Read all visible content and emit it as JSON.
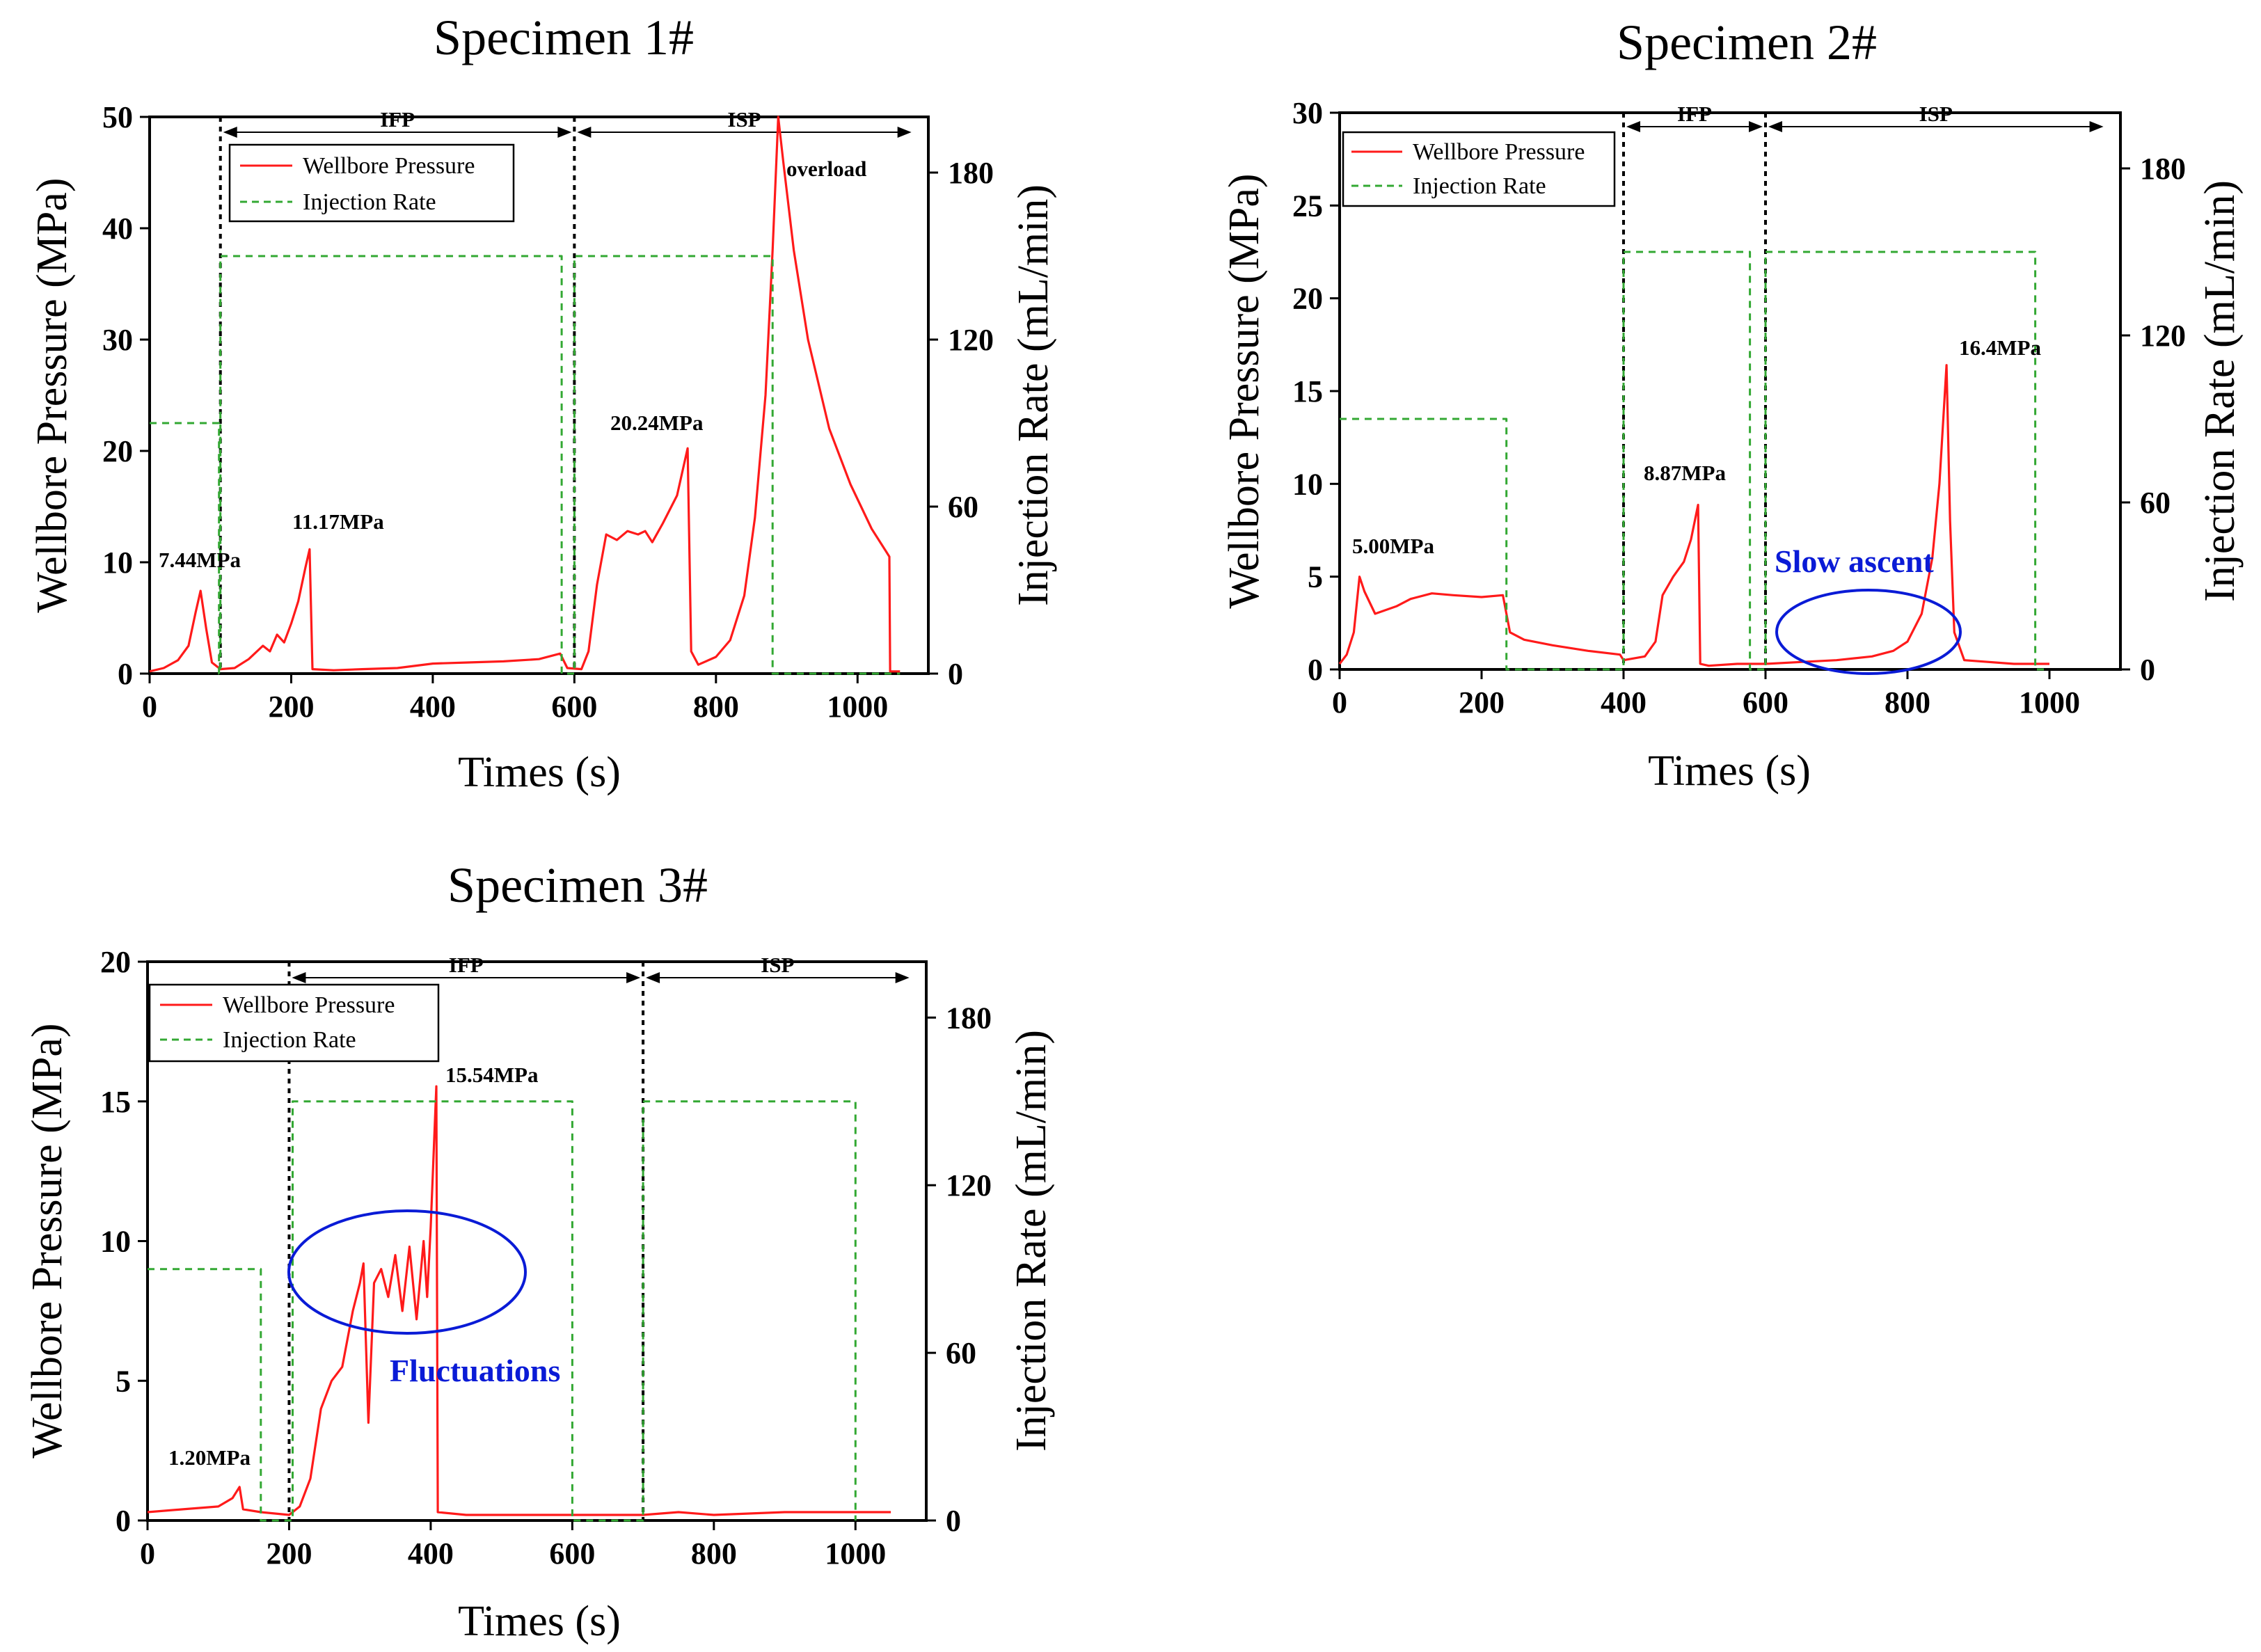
{
  "figure_type": "Hydraulic fracturing test records",
  "chart_data": [
    {
      "type": "line",
      "id": "specimen1",
      "title": "Specimen 1#",
      "xlabel": "Times (s)",
      "ylabel": "Wellbore Pressure (MPa)",
      "y2label": "Injection Rate (mL/min)",
      "xlim": [
        0,
        1100
      ],
      "ylim": [
        0,
        50
      ],
      "y2lim": [
        0,
        200
      ],
      "xticks": [
        0,
        200,
        400,
        600,
        800,
        1000
      ],
      "yticks": [
        0,
        10,
        20,
        30,
        40,
        50
      ],
      "y2ticks": [
        0,
        60,
        120,
        180
      ],
      "legend": [
        "Wellbore Pressure",
        "Injection Rate"
      ],
      "phases": [
        {
          "label": "IFP",
          "start": 100,
          "end": 600
        },
        {
          "label": "ISP",
          "start": 600,
          "end": 1080
        }
      ],
      "series": [
        {
          "name": "Wellbore Pressure",
          "axis": "left",
          "color": "#ff1a1a",
          "style": "solid",
          "points": [
            [
              0,
              0.2
            ],
            [
              20,
              0.5
            ],
            [
              40,
              1.2
            ],
            [
              55,
              2.5
            ],
            [
              65,
              5.5
            ],
            [
              72,
              7.44
            ],
            [
              80,
              4
            ],
            [
              88,
              1
            ],
            [
              100,
              0.4
            ],
            [
              120,
              0.5
            ],
            [
              140,
              1.3
            ],
            [
              160,
              2.5
            ],
            [
              170,
              2
            ],
            [
              180,
              3.5
            ],
            [
              190,
              2.8
            ],
            [
              200,
              4.5
            ],
            [
              210,
              6.5
            ],
            [
              220,
              9.5
            ],
            [
              226,
              11.17
            ],
            [
              230,
              0.4
            ],
            [
              260,
              0.3
            ],
            [
              300,
              0.4
            ],
            [
              350,
              0.5
            ],
            [
              400,
              0.9
            ],
            [
              450,
              1.0
            ],
            [
              500,
              1.1
            ],
            [
              550,
              1.3
            ],
            [
              580,
              1.8
            ],
            [
              590,
              0.5
            ],
            [
              610,
              0.4
            ],
            [
              620,
              2
            ],
            [
              632,
              8
            ],
            [
              645,
              12.5
            ],
            [
              660,
              12
            ],
            [
              675,
              12.8
            ],
            [
              690,
              12.5
            ],
            [
              700,
              12.8
            ],
            [
              710,
              11.8
            ],
            [
              725,
              13.5
            ],
            [
              745,
              16
            ],
            [
              760,
              20.24
            ],
            [
              765,
              2
            ],
            [
              775,
              0.8
            ],
            [
              800,
              1.5
            ],
            [
              820,
              3
            ],
            [
              840,
              7
            ],
            [
              855,
              14
            ],
            [
              870,
              25
            ],
            [
              880,
              38
            ],
            [
              888,
              50
            ],
            [
              895,
              46
            ],
            [
              910,
              38
            ],
            [
              930,
              30
            ],
            [
              960,
              22
            ],
            [
              990,
              17
            ],
            [
              1020,
              13
            ],
            [
              1040,
              11
            ],
            [
              1045,
              10.5
            ],
            [
              1046,
              0.2
            ],
            [
              1060,
              0.2
            ]
          ]
        },
        {
          "name": "Injection Rate",
          "axis": "right",
          "color": "#33a833",
          "style": "dashed",
          "points": [
            [
              0,
              90
            ],
            [
              98,
              90
            ],
            [
              98,
              0
            ],
            [
              100,
              0
            ],
            [
              100,
              150
            ],
            [
              582,
              150
            ],
            [
              582,
              0
            ],
            [
              600,
              0
            ],
            [
              600,
              150
            ],
            [
              880,
              150
            ],
            [
              880,
              0
            ],
            [
              1060,
              0
            ]
          ]
        }
      ],
      "annotations": [
        "7.44MPa",
        "11.17MPa",
        "20.24MPa",
        "overload"
      ]
    },
    {
      "type": "line",
      "id": "specimen2",
      "title": "Specimen 2#",
      "xlabel": "Times (s)",
      "ylabel": "Wellbore Pressure (MPa)",
      "y2label": "Injection Rate (mL/min)",
      "xlim": [
        0,
        1100
      ],
      "ylim": [
        0,
        30
      ],
      "y2lim": [
        0,
        200
      ],
      "xticks": [
        0,
        200,
        400,
        600,
        800,
        1000
      ],
      "yticks": [
        0,
        5,
        10,
        15,
        20,
        25,
        30
      ],
      "y2ticks": [
        0,
        60,
        120,
        180
      ],
      "legend": [
        "Wellbore Pressure",
        "Injection Rate"
      ],
      "phases": [
        {
          "label": "IFP",
          "start": 400,
          "end": 600
        },
        {
          "label": "ISP",
          "start": 600,
          "end": 1080
        }
      ],
      "series": [
        {
          "name": "Wellbore Pressure",
          "axis": "left",
          "color": "#ff1a1a",
          "style": "solid",
          "points": [
            [
              0,
              0.3
            ],
            [
              10,
              0.8
            ],
            [
              20,
              2
            ],
            [
              28,
              5.0
            ],
            [
              35,
              4.2
            ],
            [
              50,
              3.0
            ],
            [
              80,
              3.4
            ],
            [
              100,
              3.8
            ],
            [
              130,
              4.1
            ],
            [
              160,
              4.0
            ],
            [
              200,
              3.9
            ],
            [
              230,
              4.0
            ],
            [
              240,
              2.0
            ],
            [
              260,
              1.6
            ],
            [
              300,
              1.3
            ],
            [
              350,
              1.0
            ],
            [
              395,
              0.8
            ],
            [
              400,
              0.5
            ],
            [
              430,
              0.7
            ],
            [
              445,
              1.5
            ],
            [
              455,
              4.0
            ],
            [
              470,
              5.0
            ],
            [
              485,
              5.8
            ],
            [
              495,
              7.0
            ],
            [
              505,
              8.87
            ],
            [
              508,
              0.3
            ],
            [
              520,
              0.2
            ],
            [
              560,
              0.3
            ],
            [
              600,
              0.3
            ],
            [
              650,
              0.4
            ],
            [
              700,
              0.5
            ],
            [
              750,
              0.7
            ],
            [
              780,
              1.0
            ],
            [
              800,
              1.5
            ],
            [
              820,
              3.0
            ],
            [
              835,
              6.0
            ],
            [
              845,
              10.0
            ],
            [
              855,
              16.4
            ],
            [
              860,
              8
            ],
            [
              866,
              2.0
            ],
            [
              880,
              0.5
            ],
            [
              950,
              0.3
            ],
            [
              1000,
              0.3
            ]
          ]
        },
        {
          "name": "Injection Rate",
          "axis": "right",
          "color": "#33a833",
          "style": "dashed",
          "points": [
            [
              0,
              90
            ],
            [
              235,
              90
            ],
            [
              235,
              0
            ],
            [
              400,
              0
            ],
            [
              400,
              150
            ],
            [
              578,
              150
            ],
            [
              578,
              0
            ],
            [
              600,
              0
            ],
            [
              600,
              150
            ],
            [
              980,
              150
            ],
            [
              980,
              0
            ],
            [
              1000,
              0
            ]
          ]
        }
      ],
      "annotations": [
        "5.00MPa",
        "8.87MPa",
        "16.4MPa",
        "Slow ascent"
      ]
    },
    {
      "type": "line",
      "id": "specimen3",
      "title": "Specimen 3#",
      "xlabel": "Times (s)",
      "ylabel": "Wellbore Pressure (MPa)",
      "y2label": "Injection Rate (mL/min)",
      "xlim": [
        0,
        1100
      ],
      "ylim": [
        0,
        20
      ],
      "y2lim": [
        0,
        200
      ],
      "xticks": [
        0,
        200,
        400,
        600,
        800,
        1000
      ],
      "yticks": [
        0,
        5,
        10,
        15,
        20
      ],
      "y2ticks": [
        0,
        60,
        120,
        180
      ],
      "legend": [
        "Wellbore Pressure",
        "Injection Rate"
      ],
      "phases": [
        {
          "label": "IFP",
          "start": 200,
          "end": 700
        },
        {
          "label": "ISP",
          "start": 700,
          "end": 1080
        }
      ],
      "series": [
        {
          "name": "Wellbore Pressure",
          "axis": "left",
          "color": "#ff1a1a",
          "style": "solid",
          "points": [
            [
              0,
              0.3
            ],
            [
              50,
              0.4
            ],
            [
              100,
              0.5
            ],
            [
              120,
              0.8
            ],
            [
              130,
              1.2
            ],
            [
              135,
              0.4
            ],
            [
              160,
              0.3
            ],
            [
              200,
              0.2
            ],
            [
              215,
              0.5
            ],
            [
              230,
              1.5
            ],
            [
              245,
              4.0
            ],
            [
              260,
              5.0
            ],
            [
              275,
              5.5
            ],
            [
              290,
              7.5
            ],
            [
              300,
              8.5
            ],
            [
              305,
              9.2
            ],
            [
              312,
              3.5
            ],
            [
              320,
              8.5
            ],
            [
              330,
              9.0
            ],
            [
              340,
              8.0
            ],
            [
              350,
              9.5
            ],
            [
              360,
              7.5
            ],
            [
              370,
              9.8
            ],
            [
              380,
              7.2
            ],
            [
              390,
              10.0
            ],
            [
              395,
              8.0
            ],
            [
              400,
              10.5
            ],
            [
              408,
              15.54
            ],
            [
              410,
              0.3
            ],
            [
              450,
              0.2
            ],
            [
              500,
              0.2
            ],
            [
              600,
              0.2
            ],
            [
              700,
              0.2
            ],
            [
              750,
              0.3
            ],
            [
              800,
              0.2
            ],
            [
              900,
              0.3
            ],
            [
              1000,
              0.3
            ],
            [
              1050,
              0.3
            ]
          ]
        },
        {
          "name": "Injection Rate",
          "axis": "right",
          "color": "#33a833",
          "style": "dashed",
          "points": [
            [
              0,
              90
            ],
            [
              160,
              90
            ],
            [
              160,
              0
            ],
            [
              205,
              0
            ],
            [
              205,
              150
            ],
            [
              600,
              150
            ],
            [
              600,
              0
            ],
            [
              700,
              0
            ],
            [
              700,
              150
            ],
            [
              1000,
              150
            ],
            [
              1000,
              0
            ]
          ]
        }
      ],
      "annotations": [
        "1.20MPa",
        "15.54MPa",
        "Fluctuations"
      ]
    }
  ],
  "annotation_colors": {
    "pressure": "#ff1a1a",
    "rate": "#33a833",
    "highlight": "#0a1bd6"
  }
}
